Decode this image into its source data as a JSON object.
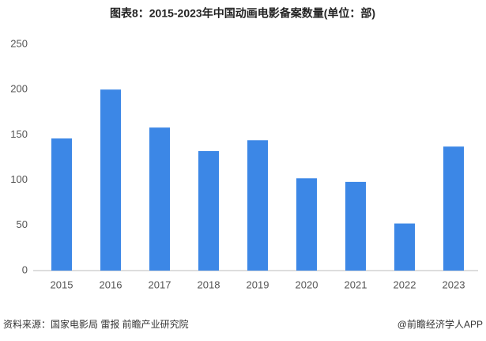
{
  "chart_data": {
    "type": "bar",
    "title": "图表8：2015-2023年中国动画电影备案数量(单位：部)",
    "categories": [
      "2015",
      "2016",
      "2017",
      "2018",
      "2019",
      "2020",
      "2021",
      "2022",
      "2023"
    ],
    "values": [
      146,
      200,
      158,
      132,
      144,
      102,
      98,
      52,
      137
    ],
    "color": "#3c87e6",
    "ylim": [
      0,
      250
    ],
    "yticks": [
      0,
      50,
      100,
      150,
      200,
      250
    ],
    "grid": false,
    "source": "资料来源：国家电影局 雷报 前瞻产业研究院",
    "credit": "@前瞻经济学人APP"
  }
}
